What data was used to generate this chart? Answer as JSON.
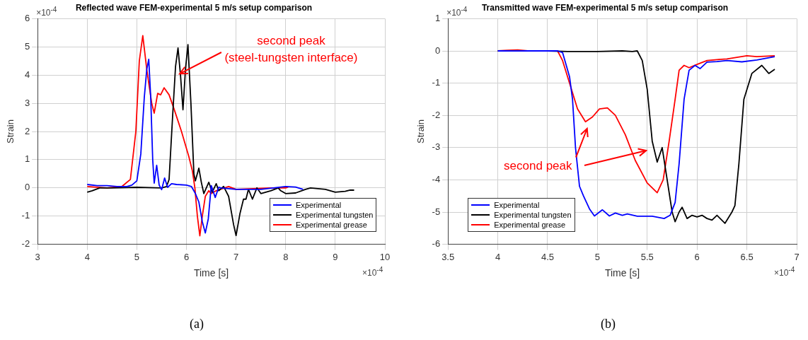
{
  "chart_data": [
    {
      "type": "line",
      "title": "Reflected wave FEM-experimental 5 m/s setup comparison",
      "xlabel": "Time [s]",
      "ylabel": "Strain",
      "xlim": [
        3,
        10
      ],
      "xticks": [
        3,
        4,
        5,
        6,
        7,
        8,
        9,
        10
      ],
      "ylim": [
        -2,
        6
      ],
      "yticks": [
        -2,
        -1,
        0,
        1,
        2,
        3,
        4,
        5,
        6
      ],
      "grid": true,
      "legend": "bottom right",
      "marker": "none",
      "line_style": "solid",
      "annotations": [
        "×10$^{-4}$",
        "×10$^{-4}$",
        "second peak",
        "(steel-tungsten interface)",
        "(a)"
      ],
      "series": [
        {
          "name": "Experimental",
          "color": "#0000ff",
          "x": [
            4,
            4.2,
            4.4,
            4.6,
            4.8,
            4.9,
            5.0,
            5.08,
            5.15,
            5.2,
            5.24,
            5.28,
            5.32,
            5.35,
            5.4,
            5.45,
            5.5,
            5.56,
            5.62,
            5.7,
            5.8,
            6.0,
            6.1,
            6.18,
            6.25,
            6.32,
            6.38,
            6.44,
            6.5,
            6.58,
            6.65,
            6.7,
            7.0,
            7.5,
            8.0,
            8.2,
            8.35
          ],
          "values": [
            0.12,
            0.08,
            0.08,
            0.05,
            0.05,
            0.1,
            0.25,
            1.2,
            3.2,
            4.2,
            4.56,
            3.2,
            1.0,
            0.17,
            0.8,
            0.1,
            -0.06,
            0.35,
            0.02,
            0.15,
            0.12,
            0.1,
            0.05,
            -0.2,
            -0.5,
            -1.2,
            -1.6,
            -1.1,
            0.08,
            -0.34,
            0.02,
            0.0,
            -0.05,
            -0.05,
            0.05,
            0.03,
            -0.05
          ]
        },
        {
          "name": "Experimental tungsten",
          "color": "#000000",
          "x": [
            4,
            4.1,
            4.25,
            4.5,
            5.0,
            5.5,
            5.6,
            5.65,
            5.72,
            5.78,
            5.83,
            5.88,
            5.93,
            5.98,
            6.03,
            6.09,
            6.15,
            6.18,
            6.25,
            6.3,
            6.35,
            6.45,
            6.52,
            6.6,
            6.65,
            6.75,
            6.85,
            6.95,
            7.0,
            7.08,
            7.15,
            7.2,
            7.25,
            7.33,
            7.42,
            7.5,
            7.7,
            7.85,
            7.9,
            8.0,
            8.2,
            8.4,
            8.5,
            8.8,
            9.0,
            9.2,
            9.3,
            9.38
          ],
          "values": [
            -0.15,
            -0.1,
            0.0,
            0.0,
            0.02,
            0.0,
            0.05,
            0.3,
            2.5,
            4.3,
            4.96,
            4.0,
            2.77,
            4.2,
            5.08,
            3.0,
            0.5,
            0.25,
            0.7,
            0.2,
            -0.2,
            0.2,
            -0.15,
            0.15,
            -0.1,
            0.05,
            -0.3,
            -1.3,
            -1.69,
            -0.9,
            -0.4,
            -0.4,
            -0.05,
            -0.4,
            0.0,
            -0.2,
            -0.1,
            0.0,
            -0.1,
            -0.2,
            -0.18,
            -0.05,
            0.0,
            -0.05,
            -0.15,
            -0.12,
            -0.08,
            -0.08
          ]
        },
        {
          "name": "Experimental grease",
          "color": "#ff0000",
          "x": [
            4,
            4.4,
            4.7,
            4.87,
            4.98,
            5.05,
            5.12,
            5.2,
            5.3,
            5.35,
            5.42,
            5.48,
            5.55,
            5.65,
            5.75,
            5.9,
            6.05,
            6.12,
            6.17,
            6.22,
            6.27,
            6.32,
            6.38,
            6.45,
            6.5,
            6.6,
            6.85,
            7.0,
            7.7,
            8.0,
            8.05
          ],
          "values": [
            0.05,
            0.0,
            0.05,
            0.3,
            2.0,
            4.5,
            5.4,
            4.2,
            3.0,
            2.65,
            3.35,
            3.3,
            3.55,
            3.3,
            2.8,
            2.0,
            1.1,
            0.6,
            0.0,
            -1.0,
            -1.7,
            -1.0,
            -0.3,
            -0.1,
            -0.2,
            -0.1,
            0.05,
            -0.05,
            0.0,
            0.0,
            0.03
          ]
        }
      ]
    },
    {
      "type": "line",
      "title": "Transmitted wave FEM-experimental 5 m/s setup comparison",
      "xlabel": "Time [s]",
      "ylabel": "Strain",
      "xlim": [
        3.5,
        7
      ],
      "xticks": [
        3.5,
        4,
        4.5,
        5,
        5.5,
        6,
        6.5,
        7
      ],
      "ylim": [
        -6,
        1
      ],
      "yticks": [
        -6,
        -5,
        -4,
        -3,
        -2,
        -1,
        0,
        1
      ],
      "grid": true,
      "legend": "bottom left",
      "marker": "none",
      "line_style": "solid",
      "annotations": [
        "×10$^{-4}$",
        "×10$^{-4}$",
        "second peak",
        "(b)"
      ],
      "series": [
        {
          "name": "Experimental",
          "color": "#0000ff",
          "x": [
            4,
            4.6,
            4.65,
            4.72,
            4.75,
            4.78,
            4.82,
            4.86,
            4.92,
            4.97,
            5.05,
            5.12,
            5.18,
            5.25,
            5.3,
            5.4,
            5.55,
            5.67,
            5.73,
            5.78,
            5.82,
            5.87,
            5.92,
            5.98,
            6.03,
            6.1,
            6.2,
            6.3,
            6.45,
            6.6,
            6.78
          ],
          "values": [
            0,
            0,
            -0.05,
            -0.8,
            -1.5,
            -3,
            -4.2,
            -4.5,
            -4.9,
            -5.12,
            -4.93,
            -5.12,
            -5.03,
            -5.1,
            -5.06,
            -5.13,
            -5.13,
            -5.2,
            -5.1,
            -4.7,
            -3.5,
            -1.5,
            -0.6,
            -0.45,
            -0.55,
            -0.35,
            -0.33,
            -0.3,
            -0.34,
            -0.28,
            -0.18
          ]
        },
        {
          "name": "Experimental tungsten",
          "color": "#000000",
          "x": [
            4,
            4.5,
            4.7,
            5.0,
            5.25,
            5.35,
            5.4,
            5.45,
            5.5,
            5.55,
            5.6,
            5.65,
            5.7,
            5.75,
            5.78,
            5.82,
            5.85,
            5.9,
            5.95,
            6.0,
            6.05,
            6.1,
            6.15,
            6.2,
            6.28,
            6.35,
            6.38,
            6.42,
            6.47,
            6.55,
            6.65,
            6.72,
            6.78
          ],
          "values": [
            0,
            0,
            -0.02,
            -0.02,
            0,
            -0.02,
            0,
            -0.3,
            -1.2,
            -2.8,
            -3.45,
            -3.0,
            -4,
            -5.0,
            -5.3,
            -5.0,
            -4.85,
            -5.2,
            -5.1,
            -5.15,
            -5.1,
            -5.2,
            -5.25,
            -5.1,
            -5.35,
            -5.0,
            -4.8,
            -3.5,
            -1.5,
            -0.7,
            -0.45,
            -0.7,
            -0.57
          ]
        },
        {
          "name": "Experimental grease",
          "color": "#ff0000",
          "x": [
            4,
            4.1,
            4.2,
            4.3,
            4.6,
            4.65,
            4.72,
            4.8,
            4.88,
            4.95,
            5.02,
            5.1,
            5.18,
            5.28,
            5.38,
            5.5,
            5.6,
            5.66,
            5.72,
            5.78,
            5.82,
            5.87,
            5.92,
            6.0,
            6.1,
            6.2,
            6.3,
            6.4,
            6.5,
            6.6,
            6.78
          ],
          "values": [
            0,
            0.02,
            0.03,
            0,
            0,
            -0.3,
            -1.0,
            -1.8,
            -2.2,
            -2.05,
            -1.8,
            -1.77,
            -2.0,
            -2.6,
            -3.4,
            -4.1,
            -4.4,
            -4.0,
            -2.8,
            -1.5,
            -0.6,
            -0.45,
            -0.52,
            -0.42,
            -0.3,
            -0.27,
            -0.25,
            -0.2,
            -0.15,
            -0.18,
            -0.15
          ]
        }
      ]
    }
  ]
}
